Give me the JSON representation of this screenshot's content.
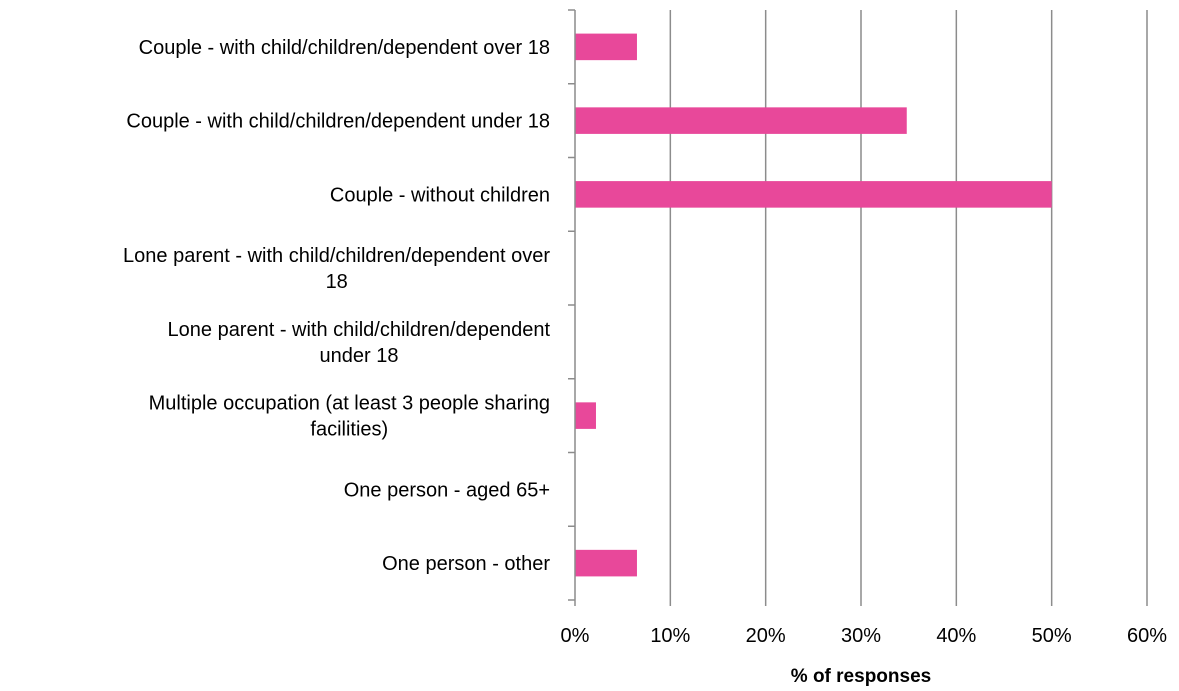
{
  "chart_data": {
    "type": "bar",
    "orientation": "horizontal",
    "categories": [
      "Couple - with child/children/dependent over 18",
      "Couple - with child/children/dependent under 18",
      "Couple - without children",
      "Lone parent - with child/children/dependent over 18",
      "Lone parent - with child/children/dependent under 18",
      "Multiple occupation (at least 3 people sharing facilities)",
      "One person - aged 65+",
      "One person - other"
    ],
    "category_lines": [
      [
        "Couple - with child/children/dependent over 18"
      ],
      [
        "Couple - with child/children/dependent under 18"
      ],
      [
        "Couple - without children"
      ],
      [
        "Lone parent - with child/children/dependent over",
        "18"
      ],
      [
        "Lone parent - with child/children/dependent",
        "under 18"
      ],
      [
        "Multiple occupation (at least 3 people sharing",
        "facilities)"
      ],
      [
        "One person - aged 65+"
      ],
      [
        "One person - other"
      ]
    ],
    "values": [
      6.5,
      34.8,
      50,
      0,
      0,
      2.2,
      0,
      6.5
    ],
    "xlabel": "% of responses",
    "ylabel": "",
    "xlim": [
      0,
      60
    ],
    "xticks": [
      0,
      10,
      20,
      30,
      40,
      50,
      60
    ],
    "xtick_labels": [
      "0%",
      "10%",
      "20%",
      "30%",
      "40%",
      "50%",
      "60%"
    ],
    "grid": "vertical",
    "legend": "none",
    "colors": {
      "bar": "#e8489a",
      "grid": "#8c8c8c",
      "axis": "#8c8c8c",
      "text": "#000000"
    }
  }
}
